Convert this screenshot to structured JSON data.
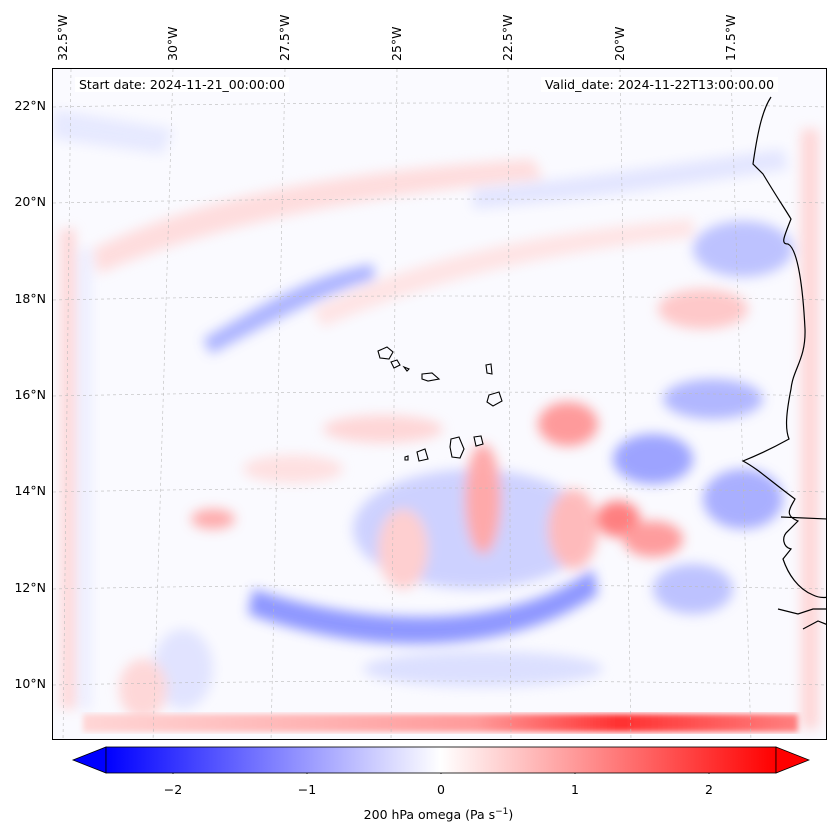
{
  "map": {
    "start_date": "Start date: 2024-11-21_00:00:00",
    "valid_date": "Valid_date: 2024-11-22T13:00:00.00",
    "lon_labels": [
      "32.5°W",
      "30°W",
      "27.5°W",
      "25°W",
      "22.5°W",
      "20°W",
      "17.5°W"
    ],
    "lat_labels": [
      "22°N",
      "20°N",
      "18°N",
      "16°N",
      "14°N",
      "12°N",
      "10°N"
    ],
    "variable": "200 hPa omega",
    "units": "Pa s",
    "units_exponent": "−1"
  },
  "colorbar": {
    "min": -2.5,
    "max": 2.5,
    "ticks": [
      "−2",
      "−1",
      "0",
      "1",
      "2"
    ],
    "tick_values": [
      -2,
      -1,
      0,
      1,
      2
    ],
    "colors": {
      "negative": "#0000ff",
      "zero": "#ffffff",
      "positive": "#ff0000"
    }
  }
}
